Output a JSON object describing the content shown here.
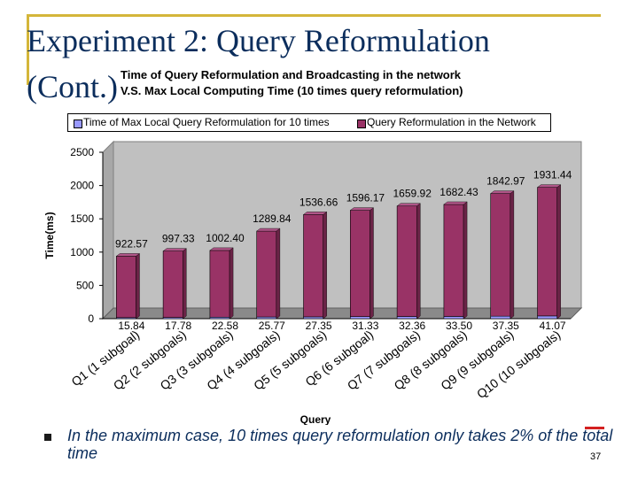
{
  "slide": {
    "title_line1": "Experiment 2: Query Reformulation",
    "title_line2": "(Cont.)",
    "note": "In the maximum case, 10 times query reformulation only takes 2% of the total time",
    "page_number": "37"
  },
  "chart_data": {
    "type": "bar",
    "title_line1": "Time of Query Reformulation and Broadcasting in the network",
    "title_line2": "V.S. Max Local Computing Time (10 times query reformulation)",
    "xlabel": "Query",
    "ylabel": "Time(ms)",
    "ylim": [
      0,
      2500
    ],
    "yticks": [
      "2500",
      "2000",
      "1500",
      "1000",
      "500",
      "0"
    ],
    "categories": [
      "Q1 (1 subgoal)",
      "Q2 (2 subgoals)",
      "Q3 (3 subgoals)",
      "Q4 (4 subgoals)",
      "Q5 (5 subgoals)",
      "Q6 (6 subgoal)",
      "Q7 (7 subgoals)",
      "Q8 (8 subgoals)",
      "Q9 (9 subgoals)",
      "Q10 (10 subgoals)"
    ],
    "stacked": true,
    "series": [
      {
        "name": "Time of Max Local Query Reformulation for 10 times",
        "color": "#9999ff",
        "values": [
          15.84,
          17.78,
          22.58,
          25.77,
          27.35,
          31.33,
          32.36,
          33.5,
          37.35,
          41.07
        ],
        "labels": [
          "15.84",
          "17.78",
          "22.58",
          "25.77",
          "27.35",
          "31.33",
          "32.36",
          "33.50",
          "37.35",
          "41.07"
        ]
      },
      {
        "name": "Query Reformulation in the Network",
        "color": "#993366",
        "values": [
          922.57,
          997.33,
          1002.4,
          1289.84,
          1536.66,
          1596.17,
          1659.92,
          1682.43,
          1842.97,
          1931.44
        ],
        "labels": [
          "922.57",
          "997.33",
          "1002.40",
          "1289.84",
          "1536.66",
          "1596.17",
          "1659.92",
          "1682.43",
          "1842.97",
          "1931.44"
        ]
      }
    ],
    "grid": false,
    "legend_position": "top",
    "plot_background": "#c0c0c0"
  }
}
